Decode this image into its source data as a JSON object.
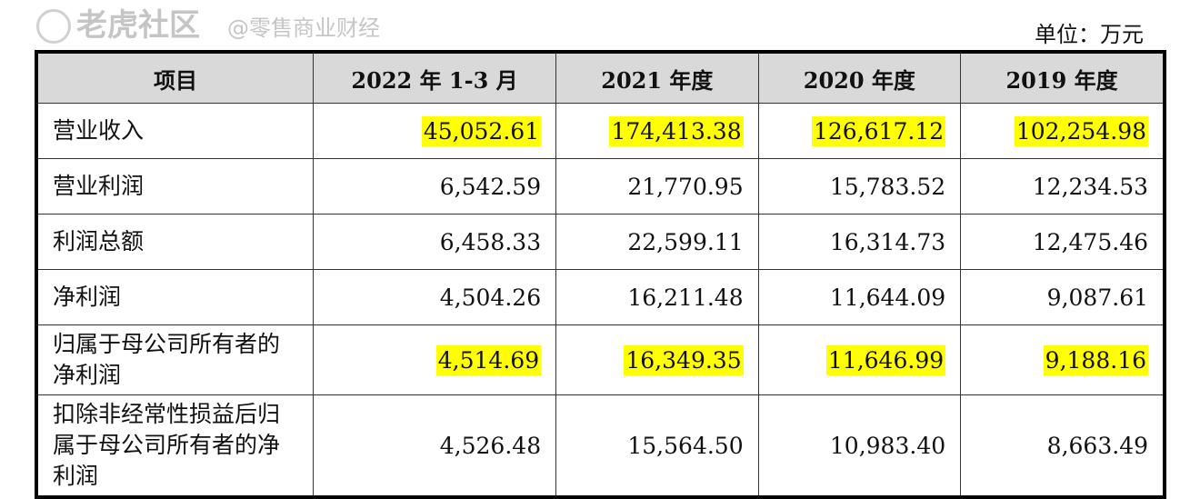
{
  "unit": "单位：万元",
  "headers": [
    "项目",
    "2022 年 1-3 月",
    "2021 年度",
    "2020 年度",
    "2019 年度"
  ],
  "rows": [
    {
      "label": "营业收入",
      "values": [
        "45,052.61",
        "174,413.38",
        "126,617.12",
        "102,254.98"
      ],
      "highlight": true
    },
    {
      "label": "营业利润",
      "values": [
        "6,542.59",
        "21,770.95",
        "15,783.52",
        "12,234.53"
      ],
      "highlight": false
    },
    {
      "label": "利润总额",
      "values": [
        "6,458.33",
        "22,599.11",
        "16,314.73",
        "12,475.46"
      ],
      "highlight": false
    },
    {
      "label": "净利润",
      "values": [
        "4,504.26",
        "16,211.48",
        "11,644.09",
        "9,087.61"
      ],
      "highlight": false
    },
    {
      "label": "归属于母公司所有者的净利润",
      "values": [
        "4,514.69",
        "16,349.35",
        "11,646.99",
        "9,188.16"
      ],
      "highlight": true
    },
    {
      "label": "扣除非经常性损益后归属于母公司所有者的净利润",
      "values": [
        "4,526.48",
        "15,564.50",
        "10,983.40",
        "8,663.49"
      ],
      "highlight": false
    }
  ],
  "highlight_color": "#ffff00",
  "watermark": {
    "line1": "老虎社区",
    "line2": "@零售商业财经"
  }
}
